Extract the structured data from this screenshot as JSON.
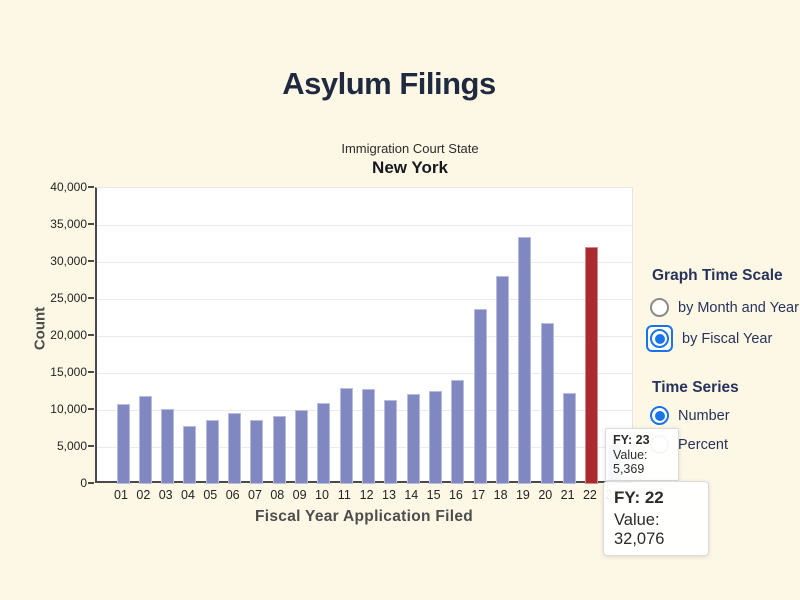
{
  "page": {
    "title": "Asylum Filings",
    "background": "#fdf8e6"
  },
  "colors": {
    "bar": "#8087c1",
    "bar_highlight": "#a92b2f",
    "radio_blue": "#1b73e8",
    "heading_navy": "#1f2940",
    "panel_navy": "#27335a"
  },
  "chart": {
    "subtitle_label": "Immigration Court State",
    "subtitle_value": "New York",
    "y_axis_title": "Count",
    "x_axis_title": "Fiscal Year Application Filed"
  },
  "chart_data": {
    "type": "bar",
    "title": "Asylum Filings",
    "subtitle": "Immigration Court State — New York",
    "xlabel": "Fiscal Year Application Filed",
    "ylabel": "Count",
    "ylim": [
      0,
      40000
    ],
    "grid": true,
    "categories": [
      "01",
      "02",
      "03",
      "04",
      "05",
      "06",
      "07",
      "08",
      "09",
      "10",
      "11",
      "12",
      "13",
      "14",
      "15",
      "16",
      "17",
      "18",
      "19",
      "20",
      "21",
      "22",
      "23"
    ],
    "values": [
      10800,
      11900,
      10200,
      7900,
      8700,
      9600,
      8700,
      9250,
      10000,
      10900,
      12950,
      12850,
      11300,
      12200,
      12600,
      14000,
      23700,
      28100,
      33400,
      21800,
      12300,
      32076,
      5369
    ],
    "highlighted_category": "22",
    "yticks": [
      {
        "label": "0",
        "value": 0
      },
      {
        "label": "5,000",
        "value": 5000
      },
      {
        "label": "10,000",
        "value": 10000
      },
      {
        "label": "15,000",
        "value": 15000
      },
      {
        "label": "20,000",
        "value": 20000
      },
      {
        "label": "25,000",
        "value": 25000
      },
      {
        "label": "30,000",
        "value": 30000
      },
      {
        "label": "35,000",
        "value": 35000
      },
      {
        "label": "40,000",
        "value": 40000
      }
    ]
  },
  "controls": {
    "graph_time_scale": {
      "heading": "Graph Time Scale",
      "options": [
        {
          "label": "by Month and Year",
          "selected": false,
          "focused": false
        },
        {
          "label": "by Fiscal Year",
          "selected": true,
          "focused": true
        }
      ]
    },
    "time_series": {
      "heading": "Time Series",
      "options": [
        {
          "label": "Number",
          "selected": true,
          "focused": false
        },
        {
          "label": "Percent",
          "selected": false,
          "focused": false
        }
      ]
    }
  },
  "tooltips": [
    {
      "line1": "FY: 23",
      "line2": "Value: 5,369"
    },
    {
      "line1": "FY: 22",
      "line2": "Value: 32,076"
    }
  ]
}
